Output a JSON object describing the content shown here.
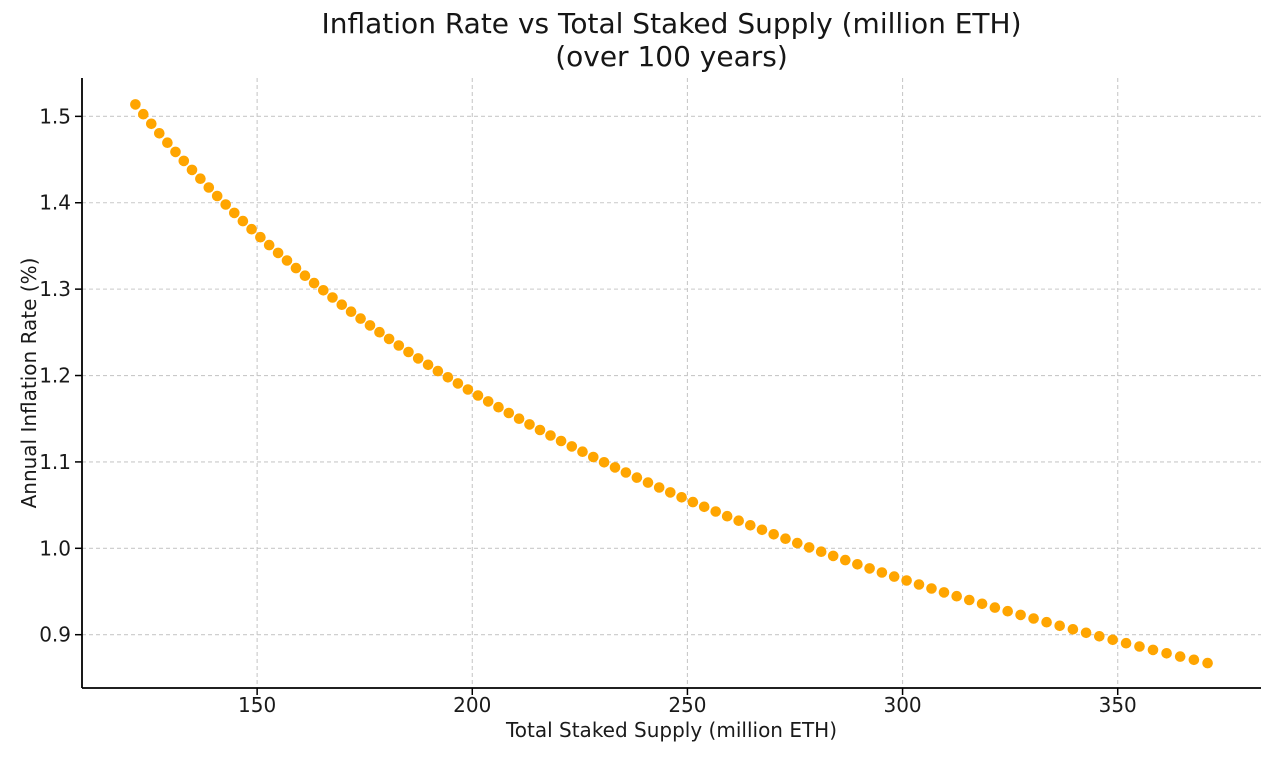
{
  "chart_data": {
    "type": "scatter",
    "title": "Inflation Rate vs Total Staked Supply (million ETH)",
    "subtitle": "(over 100 years)",
    "xlabel": "Total Staked Supply (million ETH)",
    "ylabel": "Annual Inflation Rate (%)",
    "n_points": 100,
    "x": [
      121.7,
      123.54,
      125.4,
      127.26,
      129.14,
      131.04,
      132.95,
      134.87,
      136.81,
      138.76,
      140.73,
      142.7,
      144.7,
      146.7,
      148.72,
      150.76,
      152.8,
      154.87,
      156.94,
      159.03,
      161.13,
      163.25,
      165.38,
      167.52,
      169.68,
      171.85,
      174.04,
      176.24,
      178.45,
      180.68,
      182.92,
      185.17,
      187.44,
      189.73,
      192.02,
      194.33,
      196.66,
      198.99,
      201.34,
      203.71,
      206.09,
      208.48,
      210.89,
      213.31,
      215.74,
      218.19,
      220.65,
      223.13,
      225.62,
      228.12,
      230.64,
      233.17,
      235.71,
      238.27,
      240.85,
      243.43,
      246.03,
      248.65,
      251.27,
      253.91,
      256.57,
      259.24,
      261.92,
      264.62,
      267.33,
      270.05,
      272.79,
      275.54,
      278.31,
      281.09,
      283.88,
      286.69,
      289.51,
      292.35,
      295.19,
      298.06,
      300.93,
      303.82,
      306.73,
      309.64,
      312.58,
      315.52,
      318.48,
      321.45,
      324.44,
      327.44,
      330.45,
      333.48,
      336.52,
      339.58,
      342.65,
      345.73,
      348.83,
      351.94,
      355.07,
      358.2,
      361.36,
      364.52,
      367.7,
      370.9
    ],
    "y": [
      1.5138,
      1.5025,
      1.4914,
      1.4804,
      1.4695,
      1.4589,
      1.4484,
      1.438,
      1.4278,
      1.4177,
      1.4078,
      1.398,
      1.3883,
      1.3788,
      1.3694,
      1.3601,
      1.351,
      1.342,
      1.3331,
      1.3243,
      1.3156,
      1.307,
      1.2986,
      1.2903,
      1.282,
      1.2739,
      1.2659,
      1.258,
      1.2501,
      1.2424,
      1.2348,
      1.2272,
      1.2198,
      1.2124,
      1.2051,
      1.1979,
      1.1909,
      1.1838,
      1.1769,
      1.1701,
      1.1633,
      1.1566,
      1.15,
      1.1434,
      1.137,
      1.1306,
      1.1242,
      1.118,
      1.1118,
      1.1057,
      1.0996,
      1.0936,
      1.0877,
      1.0819,
      1.0761,
      1.0704,
      1.0647,
      1.0591,
      1.0535,
      1.048,
      1.0426,
      1.0372,
      1.0319,
      1.0266,
      1.0214,
      1.0162,
      1.0111,
      1.006,
      1.001,
      0.9961,
      0.9912,
      0.9863,
      0.9815,
      0.9767,
      0.972,
      0.9673,
      0.9627,
      0.9581,
      0.9535,
      0.949,
      0.9446,
      0.9402,
      0.9358,
      0.9314,
      0.9272,
      0.9229,
      0.9187,
      0.9145,
      0.9103,
      0.9062,
      0.9022,
      0.8981,
      0.8941,
      0.8902,
      0.8863,
      0.8824,
      0.8785,
      0.8747,
      0.8709,
      0.8671
    ],
    "xticks": [
      150,
      200,
      250,
      300,
      350
    ],
    "xtick_labels": [
      "150",
      "200",
      "250",
      "300",
      "350"
    ],
    "yticks": [
      0.9,
      1.0,
      1.1,
      1.2,
      1.3,
      1.4,
      1.5
    ],
    "ytick_labels": [
      "0.9",
      "1.0",
      "1.1",
      "1.2",
      "1.3",
      "1.4",
      "1.5"
    ],
    "xlim": [
      109.3,
      383.3
    ],
    "ylim": [
      0.8383,
      1.5444
    ],
    "grid": true,
    "grid_style": "dashed",
    "legend": "none",
    "marker_color": "#FFA500",
    "marker_radius_px": 5.3
  },
  "style": {
    "background": "#ffffff",
    "grid_color": "#c9c9c9",
    "spine_color": "#000000",
    "text_color": "#1a1a1a"
  }
}
